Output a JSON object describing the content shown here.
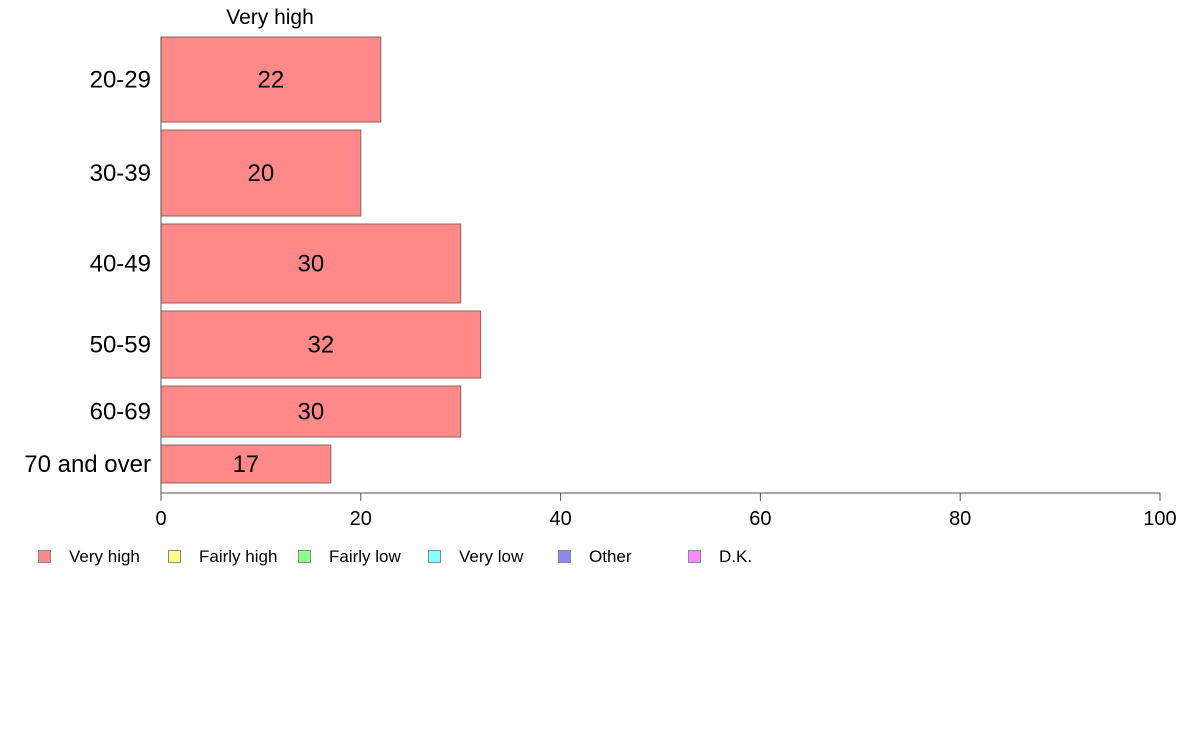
{
  "chart_data": {
    "type": "bar",
    "orientation": "horizontal",
    "title": "Very high",
    "categories": [
      "20-29",
      "30-39",
      "40-49",
      "50-59",
      "60-69",
      "70 and over"
    ],
    "series": [
      {
        "name": "Very high",
        "values": [
          22,
          20,
          30,
          32,
          30,
          17
        ],
        "color": "#ff8888"
      }
    ],
    "xlim": [
      0,
      100
    ],
    "xticks": [
      0,
      20,
      40,
      60,
      80,
      100
    ],
    "grid": false,
    "legend": {
      "position": "bottom",
      "entries": [
        {
          "label": "Very high",
          "color": "#ff8888"
        },
        {
          "label": "Fairly high",
          "color": "#ffff88"
        },
        {
          "label": "Fairly low",
          "color": "#88ff88"
        },
        {
          "label": "Very low",
          "color": "#88ffff"
        },
        {
          "label": "Other",
          "color": "#8888ee"
        },
        {
          "label": "D.K.",
          "color": "#ff88ff"
        }
      ]
    }
  }
}
